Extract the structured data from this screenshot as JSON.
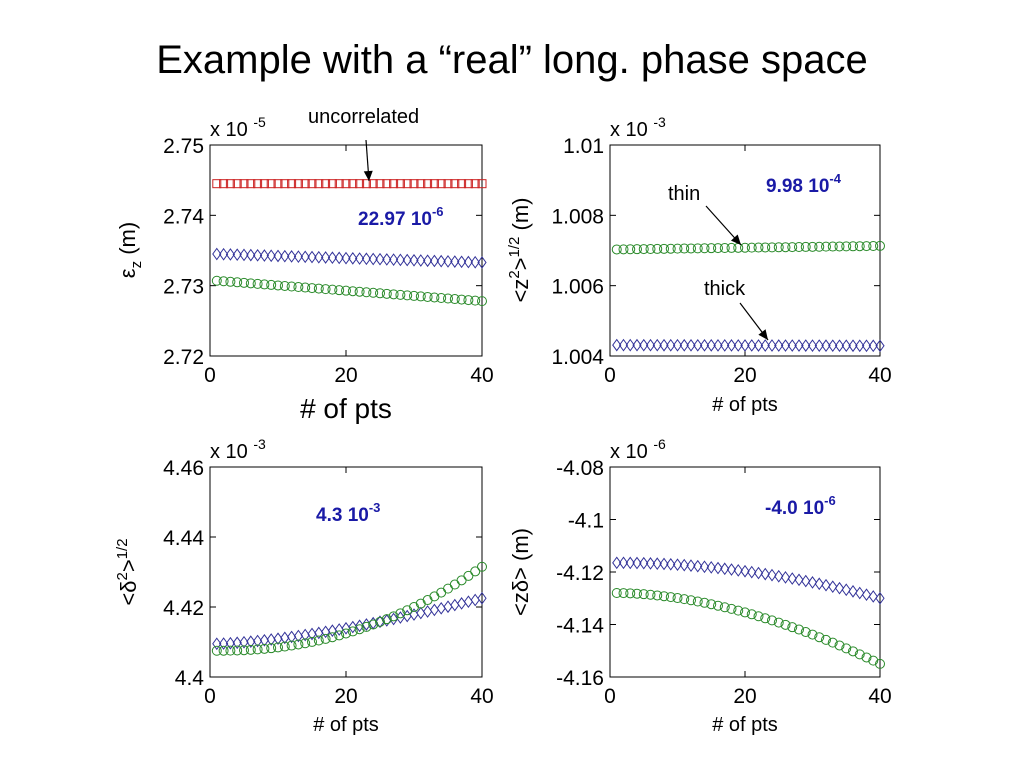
{
  "slide": {
    "title": "Example with a “real” long. phase space"
  },
  "chart_data": [
    {
      "type": "scatter",
      "xlabel": "# of pts",
      "ylabel_parts": [
        "ε",
        "z",
        " (m)"
      ],
      "exponent_base": "x 10",
      "exponent_power": "-5",
      "xlim": [
        0,
        40
      ],
      "ylim": [
        2.72,
        2.75
      ],
      "xticks": [
        "0",
        "20",
        "40"
      ],
      "yticks": [
        "2.72",
        "2.73",
        "2.74",
        "2.75"
      ],
      "annotations": [
        {
          "text": "uncorrelated",
          "color": "#000000"
        },
        {
          "text": "22.97 10",
          "sup": "-6",
          "color": "#1a1aa6",
          "bold": true
        }
      ],
      "series": [
        {
          "marker": "square",
          "color": "#cc2222",
          "x_start": 1,
          "x_end": 40,
          "y_start": 2.7445,
          "y_end": 2.7445
        },
        {
          "marker": "diamond",
          "color": "#333399",
          "x_start": 1,
          "x_end": 40,
          "y_start": 2.7345,
          "y_end": 2.7333
        },
        {
          "marker": "circle",
          "color": "#2a8a2a",
          "x_start": 1,
          "x_end": 40,
          "y_start": 2.7307,
          "y_end": 2.7278
        }
      ]
    },
    {
      "type": "scatter",
      "xlabel": "# of pts",
      "ylabel_parts": [
        "<z",
        "2",
        ">",
        "1/2",
        " (m)"
      ],
      "exponent_base": "x 10",
      "exponent_power": "-3",
      "xlim": [
        0,
        40
      ],
      "ylim": [
        1.004,
        1.01
      ],
      "xticks": [
        "0",
        "20",
        "40"
      ],
      "yticks": [
        "1.004",
        "1.006",
        "1.008",
        "1.01"
      ],
      "annotations": [
        {
          "text": "thin",
          "color": "#000000"
        },
        {
          "text": "thick",
          "color": "#000000"
        },
        {
          "text": "9.98 10",
          "sup": "-4",
          "color": "#1a1aa6",
          "bold": true
        }
      ],
      "series": [
        {
          "marker": "circle",
          "color": "#2a8a2a",
          "x_start": 1,
          "x_end": 40,
          "y_start": 1.00703,
          "y_end": 1.00713
        },
        {
          "marker": "diamond",
          "color": "#333399",
          "x_start": 1,
          "x_end": 40,
          "y_start": 1.00431,
          "y_end": 1.00429
        }
      ]
    },
    {
      "type": "scatter",
      "xlabel": "# of pts",
      "ylabel_parts": [
        "<δ",
        "2",
        ">",
        "1/2"
      ],
      "exponent_base": "x 10",
      "exponent_power": "-3",
      "xlim": [
        0,
        40
      ],
      "ylim": [
        4.4,
        4.46
      ],
      "xticks": [
        "0",
        "20",
        "40"
      ],
      "yticks": [
        "4.4",
        "4.42",
        "4.44",
        "4.46"
      ],
      "annotations": [
        {
          "text": "4.3 10",
          "sup": "-3",
          "color": "#1a1aa6",
          "bold": true
        }
      ],
      "series": [
        {
          "marker": "diamond",
          "color": "#333399",
          "x_start": 1,
          "x_end": 40,
          "y_start": 4.4095,
          "y_end": 4.4225,
          "curve": 1.5
        },
        {
          "marker": "circle",
          "color": "#2a8a2a",
          "x_start": 1,
          "x_end": 40,
          "y_start": 4.4075,
          "y_end": 4.4315,
          "curve": 2.2
        }
      ]
    },
    {
      "type": "scatter",
      "xlabel": "# of pts",
      "ylabel_parts": [
        "<zδ> (m)"
      ],
      "exponent_base": "x 10",
      "exponent_power": "-6",
      "xlim": [
        0,
        40
      ],
      "ylim": [
        -4.16,
        -4.08
      ],
      "xticks": [
        "0",
        "20",
        "40"
      ],
      "yticks": [
        "-4.16",
        "-4.14",
        "-4.12",
        "-4.1",
        "-4.08"
      ],
      "annotations": [
        {
          "text": "-4.0 10",
          "sup": "-6",
          "color": "#1a1aa6",
          "bold": true
        }
      ],
      "series": [
        {
          "marker": "diamond",
          "color": "#333399",
          "x_start": 1,
          "x_end": 40,
          "y_start": -4.1165,
          "y_end": -4.13,
          "curve": 2.0
        },
        {
          "marker": "circle",
          "color": "#2a8a2a",
          "x_start": 1,
          "x_end": 40,
          "y_start": -4.128,
          "y_end": -4.155,
          "curve": 1.8
        }
      ]
    }
  ]
}
